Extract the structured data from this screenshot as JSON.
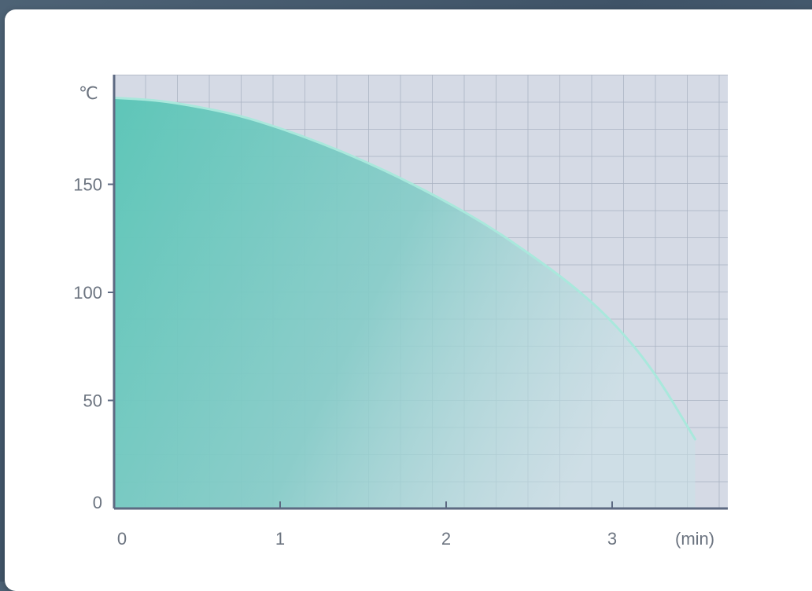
{
  "chart_data": {
    "type": "area",
    "title": "",
    "xlabel": "(min)",
    "ylabel": "℃",
    "xlim": [
      0,
      3.7
    ],
    "ylim": [
      0,
      200
    ],
    "x_ticks": [
      "0",
      "1",
      "2",
      "3"
    ],
    "y_ticks": [
      "0",
      "50",
      "100",
      "150"
    ],
    "grid": true,
    "series": [
      {
        "x": [
          0,
          0.25,
          0.5,
          0.75,
          1.0,
          1.25,
          1.5,
          1.75,
          2.0,
          2.25,
          2.5,
          2.75,
          3.0,
          3.25,
          3.5
        ],
        "y": [
          190,
          189,
          186,
          182,
          176,
          169,
          161,
          152,
          142,
          131,
          118,
          104,
          87,
          64,
          32
        ]
      }
    ],
    "colors": {
      "fill_start": "#5ec6b8",
      "fill_end": "#c4dfe3",
      "edge": "#a9e8dc",
      "plot_background": "#d5dae5",
      "grid": "#aab2c2",
      "axis": "#5d6a82"
    }
  }
}
